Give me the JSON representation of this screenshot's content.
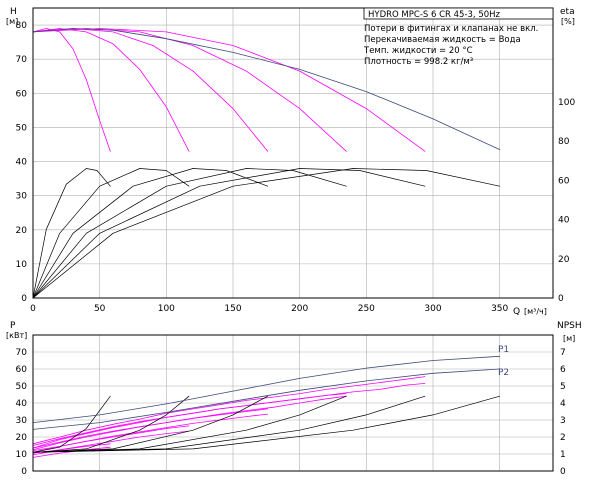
{
  "colors": {
    "frame": "#000000",
    "grid": "#b0b0b0",
    "system_curve": "#3a4a78",
    "pump_curve": "#ff00ff",
    "efficiency_curve": "#000000",
    "npsh_curve": "#000000"
  },
  "chart_data": [
    {
      "type": "line",
      "name": "head_efficiency",
      "title": "HYDRO MPC-S 6 CR 45-3, 50Hz",
      "ylabel": "H",
      "ylabel_unit": "[м]",
      "y2label": "eta",
      "y2label_unit": "[%]",
      "xlabel": "Q",
      "xlabel_unit": "[м³/ч]",
      "xlim": [
        0,
        390
      ],
      "ylim": [
        0,
        85
      ],
      "y2lim": [
        0,
        147.8
      ],
      "grid": true,
      "x_ticks": [
        0,
        50,
        100,
        150,
        200,
        250,
        300,
        350
      ],
      "y_ticks": [
        0,
        10,
        20,
        30,
        40,
        50,
        60,
        70,
        80
      ],
      "y2_ticks": [
        0,
        20,
        40,
        60,
        80,
        100
      ],
      "notes": [
        "Потери в фитингах и клапанах не вкл.",
        "Перекачиваемая жидкость = Вода",
        "Темп. жидкости = 20 °C",
        "Плотность = 998.2 кг/м³"
      ],
      "head_max": {
        "x": [
          0,
          30,
          60,
          100,
          150,
          200,
          250,
          300,
          350
        ],
        "y": [
          78,
          79,
          78.5,
          76,
          72,
          67,
          60.5,
          52.5,
          43.5
        ]
      },
      "head_curves": [
        {
          "x": [
            0,
            10,
            20,
            30,
            40,
            50,
            58
          ],
          "y": [
            78,
            79,
            78,
            73,
            64,
            52,
            43
          ]
        },
        {
          "x": [
            0,
            20,
            40,
            60,
            80,
            100,
            117
          ],
          "y": [
            78,
            79,
            78,
            74.5,
            67,
            56,
            43
          ]
        },
        {
          "x": [
            0,
            30,
            60,
            90,
            120,
            150,
            176
          ],
          "y": [
            78,
            79,
            78,
            74,
            66.5,
            55.5,
            43
          ]
        },
        {
          "x": [
            0,
            40,
            80,
            120,
            160,
            200,
            235
          ],
          "y": [
            78,
            79,
            78,
            74,
            66.5,
            55.5,
            43
          ]
        },
        {
          "x": [
            0,
            50,
            100,
            150,
            200,
            250,
            294
          ],
          "y": [
            78,
            79,
            78,
            74,
            66.5,
            55.5,
            43
          ]
        }
      ],
      "efficiency_curves": [
        {
          "x": [
            0,
            10,
            25,
            40,
            48,
            58
          ],
          "y": [
            0,
            35,
            58,
            66,
            65,
            57
          ]
        },
        {
          "x": [
            0,
            20,
            50,
            80,
            100,
            117
          ],
          "y": [
            0,
            33,
            57,
            66,
            65,
            57
          ]
        },
        {
          "x": [
            0,
            30,
            75,
            120,
            145,
            176
          ],
          "y": [
            0,
            33,
            57,
            66,
            65,
            57
          ]
        },
        {
          "x": [
            0,
            40,
            100,
            160,
            195,
            235
          ],
          "y": [
            0,
            33,
            57,
            66,
            65,
            57
          ]
        },
        {
          "x": [
            0,
            50,
            125,
            200,
            245,
            294
          ],
          "y": [
            0,
            33,
            57,
            66,
            65,
            57
          ]
        },
        {
          "x": [
            0,
            60,
            150,
            240,
            295,
            350
          ],
          "y": [
            0,
            33,
            57,
            66,
            65,
            57
          ]
        }
      ]
    },
    {
      "type": "line",
      "name": "power_npsh",
      "ylabel": "P",
      "ylabel_unit": "[кВт]",
      "y2label": "NPSH",
      "y2label_unit": "[м]",
      "xlim": [
        0,
        390
      ],
      "ylim": [
        0,
        80
      ],
      "y2lim": [
        0,
        8
      ],
      "grid": true,
      "y_ticks": [
        0,
        10,
        20,
        30,
        40,
        50,
        60,
        70
      ],
      "y2_ticks": [
        0,
        1,
        2,
        3,
        4,
        5,
        6,
        7
      ],
      "series": [
        {
          "name": "P1",
          "x": [
            0,
            50,
            100,
            150,
            200,
            250,
            300,
            350
          ],
          "y": [
            28.5,
            33,
            39.5,
            47,
            54.5,
            60.5,
            65,
            67.5
          ]
        },
        {
          "name": "P2",
          "x": [
            0,
            50,
            100,
            150,
            200,
            250,
            300,
            350
          ],
          "y": [
            24.5,
            28.5,
            34.5,
            41,
            47.5,
            53,
            57.5,
            60
          ]
        }
      ],
      "power_curves": [
        {
          "x": [
            0,
            20,
            40,
            60,
            80,
            100,
            120,
            140,
            160,
            180,
            200,
            220,
            240,
            260,
            280,
            294
          ],
          "y": [
            13.5,
            18.5,
            22,
            25.5,
            28.5,
            31.5,
            34,
            36.5,
            38.5,
            40.5,
            42.5,
            44.5,
            46.5,
            48,
            50.5,
            51.5
          ]
        },
        {
          "x": [
            0,
            20,
            40,
            60,
            80,
            100,
            120,
            140,
            160,
            180,
            200,
            220,
            240,
            260,
            280,
            294
          ],
          "y": [
            16,
            20,
            24,
            27.5,
            30.5,
            34,
            36.5,
            39,
            41.5,
            43.5,
            45.5,
            48,
            50,
            52,
            54,
            55.5
          ]
        },
        {
          "x": [
            0,
            20,
            40,
            60,
            80,
            100,
            120,
            140,
            160,
            180,
            200,
            220,
            235
          ],
          "y": [
            12.5,
            16.5,
            20,
            23,
            26,
            28.5,
            31,
            33.5,
            35.5,
            37.5,
            40,
            42.5,
            44
          ]
        },
        {
          "x": [
            0,
            20,
            40,
            60,
            80,
            100,
            120,
            140,
            160,
            180,
            200,
            220,
            235
          ],
          "y": [
            15,
            19,
            22.5,
            26,
            29,
            31.5,
            34,
            36.5,
            38.5,
            40.5,
            42.5,
            44.5,
            45.5
          ]
        },
        {
          "x": [
            0,
            20,
            40,
            60,
            80,
            100,
            120,
            140,
            160,
            176
          ],
          "y": [
            11,
            14.5,
            17.5,
            20.5,
            23,
            25.5,
            28,
            30,
            32,
            33.5
          ]
        },
        {
          "x": [
            0,
            20,
            40,
            60,
            80,
            100,
            120,
            140,
            160,
            176
          ],
          "y": [
            13.5,
            17,
            20.5,
            23.5,
            26,
            28.5,
            31,
            33,
            35,
            36.5
          ]
        },
        {
          "x": [
            0,
            20,
            40,
            60,
            80,
            100,
            117
          ],
          "y": [
            9.5,
            12.5,
            15,
            17.5,
            20,
            22,
            23.5
          ]
        },
        {
          "x": [
            0,
            20,
            40,
            60,
            80,
            100,
            117
          ],
          "y": [
            12,
            14.5,
            17.5,
            20,
            22.5,
            25,
            26.5
          ]
        },
        {
          "x": [
            0,
            20,
            40,
            58
          ],
          "y": [
            8,
            10.5,
            12.5,
            14
          ]
        },
        {
          "x": [
            0,
            20,
            40,
            58
          ],
          "y": [
            10.5,
            12.5,
            14.5,
            16
          ]
        }
      ],
      "npsh_curves": [
        {
          "x": [
            0,
            20,
            40,
            58
          ],
          "y": [
            1.1,
            1.4,
            2.5,
            4.4
          ]
        },
        {
          "x": [
            0,
            40,
            80,
            100,
            117
          ],
          "y": [
            1.1,
            1.3,
            2.4,
            3.3,
            4.4
          ]
        },
        {
          "x": [
            0,
            60,
            120,
            150,
            176
          ],
          "y": [
            1.1,
            1.3,
            2.4,
            3.3,
            4.4
          ]
        },
        {
          "x": [
            0,
            80,
            160,
            200,
            235
          ],
          "y": [
            1.1,
            1.3,
            2.4,
            3.3,
            4.4
          ]
        },
        {
          "x": [
            0,
            100,
            200,
            250,
            294
          ],
          "y": [
            1.1,
            1.3,
            2.4,
            3.3,
            4.4
          ]
        },
        {
          "x": [
            0,
            120,
            240,
            300,
            350
          ],
          "y": [
            1.1,
            1.3,
            2.4,
            3.3,
            4.4
          ]
        }
      ]
    }
  ]
}
